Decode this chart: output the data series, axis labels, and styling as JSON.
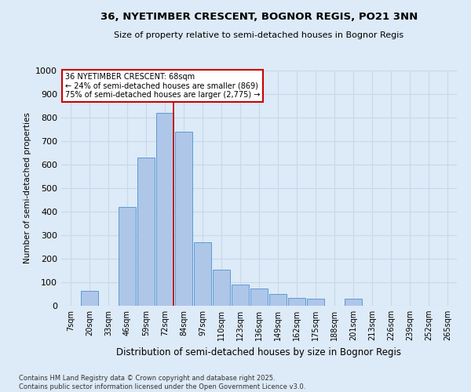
{
  "title": "36, NYETIMBER CRESCENT, BOGNOR REGIS, PO21 3NN",
  "subtitle": "Size of property relative to semi-detached houses in Bognor Regis",
  "xlabel": "Distribution of semi-detached houses by size in Bognor Regis",
  "ylabel": "Number of semi-detached properties",
  "footer_line1": "Contains HM Land Registry data © Crown copyright and database right 2025.",
  "footer_line2": "Contains public sector information licensed under the Open Government Licence v3.0.",
  "categories": [
    "7sqm",
    "20sqm",
    "33sqm",
    "46sqm",
    "59sqm",
    "72sqm",
    "84sqm",
    "97sqm",
    "110sqm",
    "123sqm",
    "136sqm",
    "149sqm",
    "162sqm",
    "175sqm",
    "188sqm",
    "201sqm",
    "213sqm",
    "226sqm",
    "239sqm",
    "252sqm",
    "265sqm"
  ],
  "values": [
    0,
    65,
    0,
    420,
    630,
    820,
    740,
    270,
    155,
    90,
    75,
    50,
    35,
    30,
    0,
    30,
    0,
    0,
    0,
    0,
    0
  ],
  "bar_color": "#aec6e8",
  "bar_edge_color": "#5b9bd5",
  "grid_color": "#c8d8e8",
  "background_color": "#ddeaf7",
  "annotation_box_text": "36 NYETIMBER CRESCENT: 68sqm\n← 24% of semi-detached houses are smaller (869)\n75% of semi-detached houses are larger (2,775) →",
  "annotation_box_color": "#ffffff",
  "annotation_box_edge_color": "#cc0000",
  "vline_color": "#cc0000",
  "vline_x": 5.45,
  "ylim": [
    0,
    1000
  ],
  "yticks": [
    0,
    100,
    200,
    300,
    400,
    500,
    600,
    700,
    800,
    900,
    1000
  ]
}
